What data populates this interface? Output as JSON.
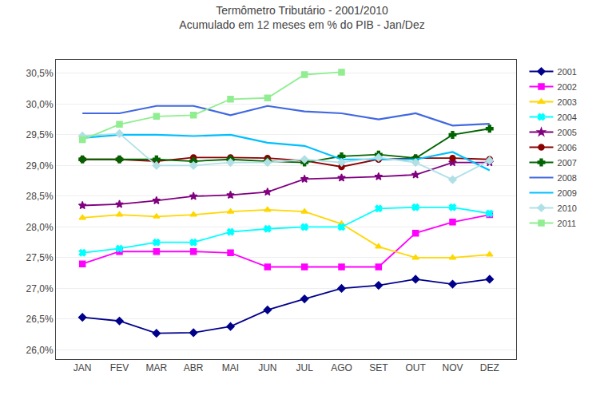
{
  "chart_data": {
    "type": "line",
    "title": "Termômetro Tributário - 2001/2010",
    "subtitle": "Acumulado em 12 meses em % do PIB - Jan/Dez",
    "categories": [
      "JAN",
      "FEV",
      "MAR",
      "ABR",
      "MAI",
      "JUN",
      "JUL",
      "AGO",
      "SET",
      "OUT",
      "NOV",
      "DEZ"
    ],
    "ylim": [
      25.85,
      30.72
    ],
    "yticks": [
      {
        "value": 26.0,
        "label": "26,0%"
      },
      {
        "value": 26.5,
        "label": "26,5%"
      },
      {
        "value": 27.0,
        "label": "27,0%"
      },
      {
        "value": 27.5,
        "label": "27,5%"
      },
      {
        "value": 28.0,
        "label": "28,0%"
      },
      {
        "value": 28.5,
        "label": "28,5%"
      },
      {
        "value": 29.0,
        "label": "29,0%"
      },
      {
        "value": 29.5,
        "label": "29,5%"
      },
      {
        "value": 30.0,
        "label": "30,0%"
      },
      {
        "value": 30.5,
        "label": "30,5%"
      }
    ],
    "grid": "y",
    "legend": "right",
    "series": [
      {
        "name": "2001",
        "color": "#00008B",
        "marker": "diamond",
        "values": [
          26.53,
          26.47,
          26.27,
          26.28,
          26.38,
          26.65,
          26.83,
          27.0,
          27.05,
          27.15,
          27.07,
          27.15
        ]
      },
      {
        "name": "2002",
        "color": "#FF00FF",
        "marker": "square",
        "values": [
          27.4,
          27.6,
          27.6,
          27.6,
          27.58,
          27.35,
          27.35,
          27.35,
          27.35,
          27.9,
          28.08,
          28.2
        ]
      },
      {
        "name": "2003",
        "color": "#FFD700",
        "marker": "triangle-up",
        "values": [
          28.15,
          28.2,
          28.17,
          28.2,
          28.25,
          28.28,
          28.25,
          28.05,
          27.68,
          27.5,
          27.5,
          27.55
        ]
      },
      {
        "name": "2004",
        "color": "#00FFFF",
        "marker": "x",
        "values": [
          27.58,
          27.65,
          27.75,
          27.75,
          27.92,
          27.97,
          28.0,
          28.0,
          28.3,
          28.32,
          28.32,
          28.22
        ]
      },
      {
        "name": "2005",
        "color": "#800080",
        "marker": "star",
        "values": [
          28.35,
          28.37,
          28.43,
          28.5,
          28.52,
          28.57,
          28.78,
          28.8,
          28.82,
          28.85,
          29.05,
          29.05
        ]
      },
      {
        "name": "2006",
        "color": "#8B0000",
        "marker": "circle",
        "values": [
          29.1,
          29.1,
          29.07,
          29.13,
          29.13,
          29.12,
          29.08,
          28.98,
          29.1,
          29.12,
          29.12,
          29.1
        ]
      },
      {
        "name": "2007",
        "color": "#006400",
        "marker": "cross",
        "values": [
          29.1,
          29.1,
          29.1,
          29.07,
          29.1,
          29.07,
          29.05,
          29.15,
          29.18,
          29.12,
          29.5,
          29.6
        ]
      },
      {
        "name": "2008",
        "color": "#4169E1",
        "marker": "none",
        "values": [
          29.85,
          29.85,
          29.97,
          29.97,
          29.82,
          29.97,
          29.88,
          29.85,
          29.75,
          29.85,
          29.65,
          29.68
        ]
      },
      {
        "name": "2009",
        "color": "#00BFFF",
        "marker": "none",
        "values": [
          29.45,
          29.5,
          29.5,
          29.48,
          29.5,
          29.37,
          29.32,
          29.1,
          29.1,
          29.1,
          29.22,
          28.92
        ]
      },
      {
        "name": "2010",
        "color": "#B0E0E6",
        "marker": "diamond",
        "values": [
          29.48,
          29.52,
          29.0,
          29.0,
          29.05,
          29.05,
          29.1,
          29.05,
          29.13,
          29.05,
          28.77,
          29.08
        ]
      },
      {
        "name": "2011",
        "color": "#90EE90",
        "marker": "square",
        "values": [
          29.42,
          29.67,
          29.8,
          29.82,
          30.08,
          30.1,
          30.48,
          30.52,
          null,
          null,
          null,
          null
        ]
      }
    ]
  }
}
